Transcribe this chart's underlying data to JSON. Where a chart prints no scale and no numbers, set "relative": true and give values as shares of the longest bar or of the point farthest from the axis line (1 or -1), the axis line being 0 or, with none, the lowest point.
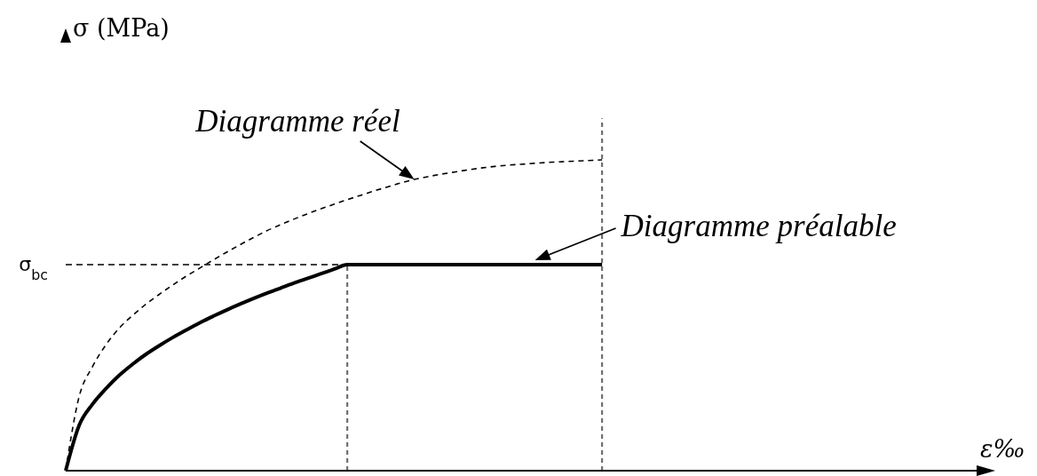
{
  "chart_data": {
    "type": "line",
    "xlabel": "ε‰",
    "ylabel": "σ (MPa)",
    "relative": true,
    "marker": "none",
    "categories": [
      null,
      null,
      null,
      null,
      null,
      null,
      null,
      null,
      null,
      null,
      null,
      null,
      null,
      null,
      null,
      null,
      null,
      null,
      null,
      null,
      null,
      null,
      null,
      null,
      null,
      null,
      null,
      null,
      null,
      null,
      null,
      null,
      null,
      null,
      null,
      null,
      null,
      null,
      null,
      null,
      null,
      null,
      null,
      null,
      null,
      null,
      null,
      null,
      null,
      null,
      null,
      null,
      null,
      null,
      null,
      null,
      null,
      null,
      null,
      null,
      null,
      null,
      null,
      null,
      null,
      null,
      null,
      null,
      null
    ],
    "series": [
      {
        "name": "Diagramme réel",
        "color": "#000000",
        "line_style": "dashed",
        "values": [
          0,
          0.238,
          0.335,
          0.405,
          0.459,
          0.5,
          0.536,
          0.568,
          0.598,
          0.626,
          0.652,
          0.678,
          0.703,
          0.727,
          0.75,
          0.772,
          0.791,
          0.809,
          0.826,
          0.842,
          0.857,
          0.872,
          0.886,
          0.9,
          0.913,
          0.926,
          0.937,
          0.946,
          0.954,
          0.961,
          0.968,
          0.974,
          0.979,
          0.983,
          0.986,
          0.989,
          0.992,
          0.994,
          0.996,
          0.998,
          1.0,
          null,
          null,
          null,
          null,
          null,
          null,
          null,
          null,
          null,
          null,
          null,
          null,
          null,
          null,
          null,
          null,
          null,
          null,
          null,
          null,
          null,
          null,
          null,
          null,
          null,
          null,
          null,
          null
        ]
      },
      {
        "name": "Diagramme préalable",
        "color": "#000000",
        "line_style": "solid",
        "values": [
          0,
          0.146,
          0.214,
          0.264,
          0.307,
          0.343,
          0.375,
          0.403,
          0.429,
          0.453,
          0.476,
          0.497,
          0.517,
          0.536,
          0.554,
          0.571,
          0.587,
          0.603,
          0.618,
          0.633,
          0.648,
          0.663,
          0.663,
          0.663,
          0.663,
          0.663,
          0.663,
          0.663,
          0.663,
          0.663,
          0.663,
          0.663,
          0.663,
          0.663,
          0.663,
          0.663,
          0.663,
          0.663,
          0.663,
          0.663,
          0.663,
          null,
          null,
          null,
          null,
          null,
          null,
          null,
          null,
          null,
          null,
          null,
          null,
          null,
          null,
          null,
          null,
          null,
          null,
          null,
          null,
          null,
          null,
          null,
          null,
          null,
          null,
          null,
          null
        ]
      }
    ],
    "ref_lines": [
      {
        "axis": "y",
        "value": 0.663,
        "label": "σ$_{bc}$",
        "color": "#000000",
        "line_style": "dashed"
      }
    ]
  }
}
